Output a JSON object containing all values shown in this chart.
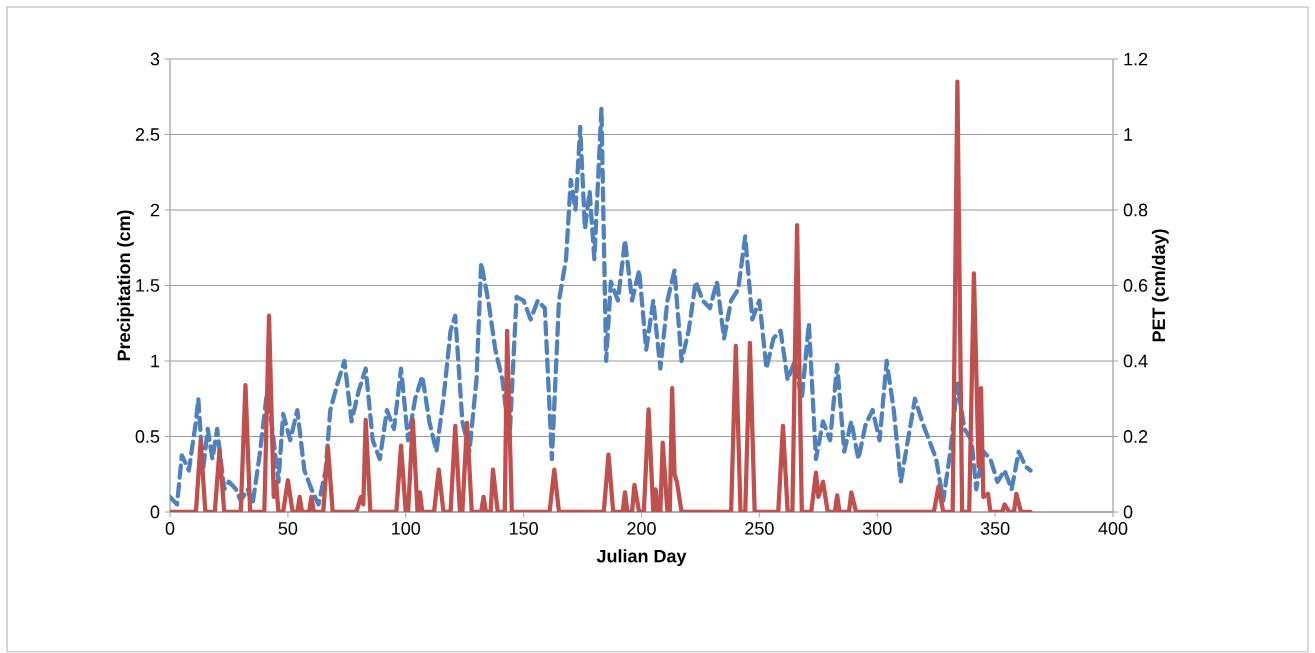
{
  "chart_data": {
    "type": "line",
    "xlabel": "Julian Day",
    "ylabel": "Precipitation (cm)",
    "y2label": "PET (cm/day)",
    "xlim": [
      0,
      400
    ],
    "xticks": [
      0,
      50,
      100,
      150,
      200,
      250,
      300,
      350,
      400
    ],
    "ylim": [
      0,
      3
    ],
    "yticks": [
      0,
      0.5,
      1,
      1.5,
      2,
      2.5,
      3
    ],
    "y2lim": [
      0,
      1.2
    ],
    "y2ticks": [
      0,
      0.2,
      0.4,
      0.6,
      0.8,
      1,
      1.2
    ],
    "grid": "y",
    "marker": "none",
    "series": [
      {
        "color": "#4f81bd",
        "axis": "y2",
        "line_style": "dashed",
        "x": [
          0,
          3,
          5,
          8,
          11,
          12,
          14,
          16,
          18,
          20,
          23,
          25,
          28,
          30,
          33,
          35,
          38,
          41,
          43,
          46,
          48,
          51,
          54,
          57,
          60,
          63,
          66,
          68,
          71,
          74,
          77,
          80,
          83,
          86,
          89,
          92,
          95,
          98,
          101,
          104,
          107,
          110,
          113,
          116,
          119,
          121,
          124,
          127,
          130,
          132,
          135,
          138,
          141,
          144,
          147,
          150,
          153,
          156,
          159,
          162,
          165,
          168,
          170,
          172,
          174,
          176,
          178,
          180,
          183,
          185,
          187,
          190,
          193,
          196,
          199,
          202,
          205,
          208,
          211,
          214,
          217,
          220,
          223,
          226,
          229,
          232,
          235,
          238,
          241,
          244,
          247,
          250,
          253,
          256,
          259,
          262,
          265,
          268,
          271,
          274,
          277,
          280,
          283,
          286,
          289,
          292,
          295,
          298,
          301,
          304,
          307,
          310,
          313,
          316,
          319,
          322,
          325,
          328,
          331,
          334,
          337,
          340,
          342,
          345,
          348,
          351,
          354,
          357,
          360,
          363,
          365
        ],
        "values": [
          0.04,
          0.02,
          0.15,
          0.11,
          0.24,
          0.3,
          0.11,
          0.22,
          0.14,
          0.22,
          0.06,
          0.08,
          0.06,
          0.03,
          0.06,
          0.02,
          0.15,
          0.31,
          0.24,
          0.08,
          0.26,
          0.19,
          0.27,
          0.11,
          0.06,
          0.02,
          0.11,
          0.27,
          0.34,
          0.4,
          0.24,
          0.32,
          0.38,
          0.19,
          0.14,
          0.27,
          0.22,
          0.38,
          0.19,
          0.3,
          0.36,
          0.24,
          0.16,
          0.3,
          0.48,
          0.52,
          0.24,
          0.16,
          0.35,
          0.66,
          0.56,
          0.43,
          0.35,
          0.19,
          0.57,
          0.56,
          0.51,
          0.56,
          0.54,
          0.14,
          0.56,
          0.67,
          0.88,
          0.8,
          1.02,
          0.75,
          0.85,
          0.67,
          1.07,
          0.4,
          0.61,
          0.56,
          0.72,
          0.56,
          0.64,
          0.43,
          0.56,
          0.38,
          0.56,
          0.64,
          0.4,
          0.48,
          0.61,
          0.56,
          0.54,
          0.61,
          0.46,
          0.56,
          0.59,
          0.73,
          0.51,
          0.56,
          0.38,
          0.46,
          0.48,
          0.35,
          0.4,
          0.3,
          0.5,
          0.14,
          0.24,
          0.19,
          0.39,
          0.16,
          0.24,
          0.14,
          0.23,
          0.27,
          0.19,
          0.4,
          0.27,
          0.08,
          0.19,
          0.3,
          0.24,
          0.19,
          0.14,
          0.03,
          0.16,
          0.34,
          0.22,
          0.19,
          0.06,
          0.16,
          0.14,
          0.08,
          0.11,
          0.06,
          0.16,
          0.12,
          0.11
        ]
      },
      {
        "color": "#c0504d",
        "axis": "y",
        "line_style": "solid",
        "x": [
          0,
          11,
          13,
          15,
          19,
          21,
          23,
          30,
          32,
          34,
          40,
          42,
          44,
          45,
          46,
          48,
          50,
          52,
          54,
          55,
          56,
          59,
          60,
          61,
          65,
          67,
          69,
          79,
          81,
          82,
          83,
          85,
          96,
          98,
          100,
          101,
          103,
          105,
          106,
          107,
          112,
          114,
          116,
          119,
          121,
          123,
          124,
          126,
          128,
          132,
          133,
          134,
          136,
          137,
          139,
          142,
          143,
          145,
          161,
          163,
          165,
          184,
          186,
          188,
          192,
          193,
          194,
          196,
          197,
          199,
          201,
          203,
          205,
          206,
          207,
          208,
          209,
          211,
          212,
          213,
          214,
          215,
          217,
          238,
          240,
          242,
          244,
          246,
          248,
          258,
          260,
          262,
          264,
          266,
          268,
          272,
          274,
          275,
          277,
          279,
          282,
          283,
          284,
          288,
          289,
          291,
          324,
          326,
          328,
          332,
          334,
          336,
          339,
          341,
          343,
          344,
          345,
          347,
          348,
          353,
          354,
          356,
          358,
          359,
          361,
          365
        ],
        "values": [
          0,
          0,
          0.47,
          0,
          0,
          0.41,
          0,
          0,
          0.84,
          0,
          0,
          1.3,
          0.1,
          0.2,
          0,
          0,
          0.21,
          0,
          0,
          0.1,
          0,
          0,
          0.1,
          0,
          0,
          0.43,
          0,
          0,
          0.1,
          0.05,
          0.61,
          0,
          0,
          0.44,
          0,
          0,
          0.61,
          0,
          0.13,
          0,
          0,
          0.28,
          0,
          0,
          0.57,
          0,
          0,
          0.59,
          0,
          0,
          0.1,
          0,
          0,
          0.28,
          0,
          0,
          1.2,
          0,
          0,
          0.28,
          0,
          0,
          0.38,
          0,
          0,
          0.13,
          0,
          0,
          0.18,
          0,
          0,
          0.68,
          0,
          0.15,
          0,
          0,
          0.46,
          0,
          0,
          0.82,
          0.25,
          0.2,
          0,
          0,
          1.1,
          0,
          0,
          1.12,
          0,
          0,
          0.57,
          0,
          0,
          1.9,
          0,
          0,
          0.26,
          0.1,
          0.2,
          0,
          0,
          0.11,
          0,
          0,
          0.13,
          0,
          0,
          0.17,
          0,
          0,
          2.85,
          0,
          0,
          1.58,
          0.3,
          0.82,
          0.1,
          0.12,
          0,
          0,
          0.05,
          0,
          0,
          0.12,
          0,
          0
        ]
      }
    ]
  }
}
